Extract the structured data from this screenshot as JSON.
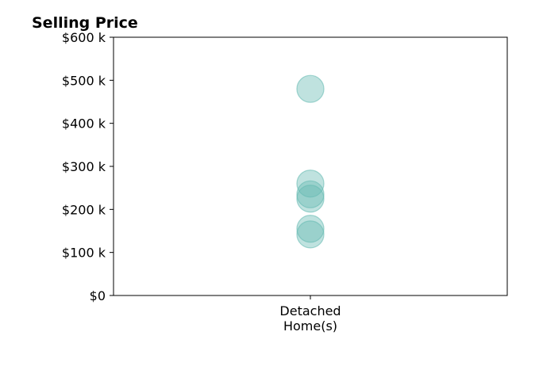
{
  "chart_data": {
    "type": "scatter",
    "title": "Selling Price",
    "xlabel": "",
    "ylabel": "",
    "categories": [
      [
        "Detached",
        "Home(s)"
      ]
    ],
    "y_ticks": [
      {
        "value": 0,
        "label": "$0"
      },
      {
        "value": 100000,
        "label": "$100 k"
      },
      {
        "value": 200000,
        "label": "$200 k"
      },
      {
        "value": 300000,
        "label": "$300 k"
      },
      {
        "value": 400000,
        "label": "$400 k"
      },
      {
        "value": 500000,
        "label": "$500 k"
      },
      {
        "value": 600000,
        "label": "$600 k"
      }
    ],
    "ylim": [
      0,
      600000
    ],
    "grid": false,
    "series": [
      {
        "category_index": 0,
        "values": [
          480000,
          260000,
          235000,
          225000,
          155000,
          142000
        ]
      }
    ],
    "marker_color": "#66bbb3",
    "marker_opacity": 0.42
  }
}
